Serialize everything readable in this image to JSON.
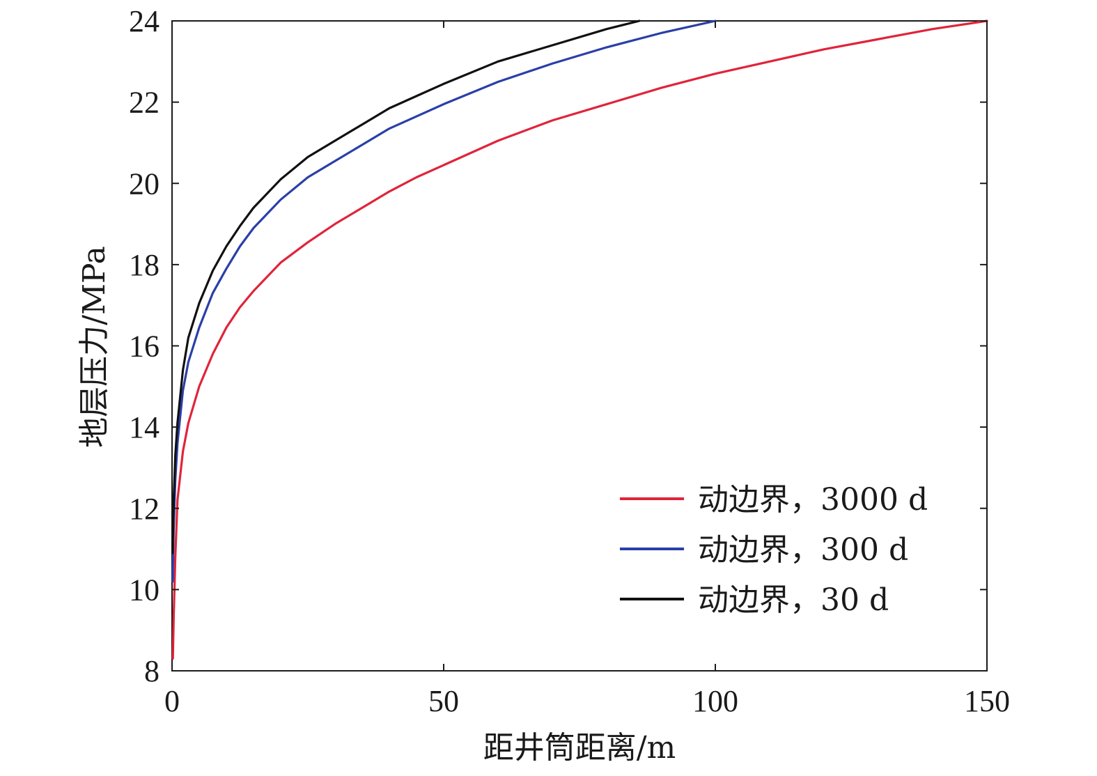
{
  "colors": {
    "axis": "#1a1a1a",
    "series_3000d": "#e0243a",
    "series_300d": "#2a3fa8",
    "series_30d": "#111111"
  },
  "chart_data": {
    "type": "line",
    "title": "",
    "xlabel": "距井筒距离/m",
    "ylabel": "地层压力/MPa",
    "xlim": [
      0,
      150
    ],
    "ylim": [
      8,
      24
    ],
    "x_ticks": [
      0,
      50,
      100,
      150
    ],
    "y_ticks": [
      8,
      10,
      12,
      14,
      16,
      18,
      20,
      22,
      24
    ],
    "grid": false,
    "legend_position": "bottom-right",
    "series": [
      {
        "name": "动边界，3000 d",
        "color": "#e0243a",
        "points": [
          [
            0.15,
            8.3
          ],
          [
            0.3,
            9.3
          ],
          [
            0.6,
            10.8
          ],
          [
            1,
            12.2
          ],
          [
            2,
            13.4
          ],
          [
            3,
            14.1
          ],
          [
            5,
            15.0
          ],
          [
            7.5,
            15.8
          ],
          [
            10,
            16.45
          ],
          [
            12.5,
            16.95
          ],
          [
            15,
            17.35
          ],
          [
            20,
            18.05
          ],
          [
            25,
            18.55
          ],
          [
            30,
            19.0
          ],
          [
            35,
            19.4
          ],
          [
            40,
            19.8
          ],
          [
            45,
            20.15
          ],
          [
            50,
            20.45
          ],
          [
            60,
            21.05
          ],
          [
            70,
            21.55
          ],
          [
            80,
            21.95
          ],
          [
            90,
            22.35
          ],
          [
            100,
            22.7
          ],
          [
            110,
            23.0
          ],
          [
            120,
            23.3
          ],
          [
            130,
            23.55
          ],
          [
            140,
            23.8
          ],
          [
            150,
            24.0
          ]
        ]
      },
      {
        "name": "动边界，300 d",
        "color": "#2a3fa8",
        "points": [
          [
            0.1,
            10.2
          ],
          [
            0.3,
            11.5
          ],
          [
            0.6,
            12.7
          ],
          [
            1,
            13.6
          ],
          [
            2,
            14.9
          ],
          [
            3,
            15.6
          ],
          [
            5,
            16.45
          ],
          [
            7.5,
            17.3
          ],
          [
            10,
            17.9
          ],
          [
            12.5,
            18.45
          ],
          [
            15,
            18.9
          ],
          [
            20,
            19.6
          ],
          [
            25,
            20.15
          ],
          [
            30,
            20.55
          ],
          [
            35,
            20.95
          ],
          [
            40,
            21.35
          ],
          [
            45,
            21.65
          ],
          [
            50,
            21.95
          ],
          [
            60,
            22.5
          ],
          [
            70,
            22.95
          ],
          [
            80,
            23.35
          ],
          [
            90,
            23.7
          ],
          [
            100,
            24.0
          ]
        ]
      },
      {
        "name": "动边界，30 d",
        "color": "#111111",
        "points": [
          [
            0.1,
            10.9
          ],
          [
            0.3,
            12.2
          ],
          [
            0.6,
            13.3
          ],
          [
            1,
            14.1
          ],
          [
            2,
            15.4
          ],
          [
            3,
            16.2
          ],
          [
            5,
            17.05
          ],
          [
            7.5,
            17.85
          ],
          [
            10,
            18.45
          ],
          [
            12.5,
            18.95
          ],
          [
            15,
            19.4
          ],
          [
            20,
            20.1
          ],
          [
            25,
            20.65
          ],
          [
            30,
            21.05
          ],
          [
            35,
            21.45
          ],
          [
            40,
            21.85
          ],
          [
            45,
            22.15
          ],
          [
            50,
            22.45
          ],
          [
            60,
            23.0
          ],
          [
            70,
            23.4
          ],
          [
            80,
            23.8
          ],
          [
            86,
            24.0
          ]
        ]
      }
    ]
  }
}
